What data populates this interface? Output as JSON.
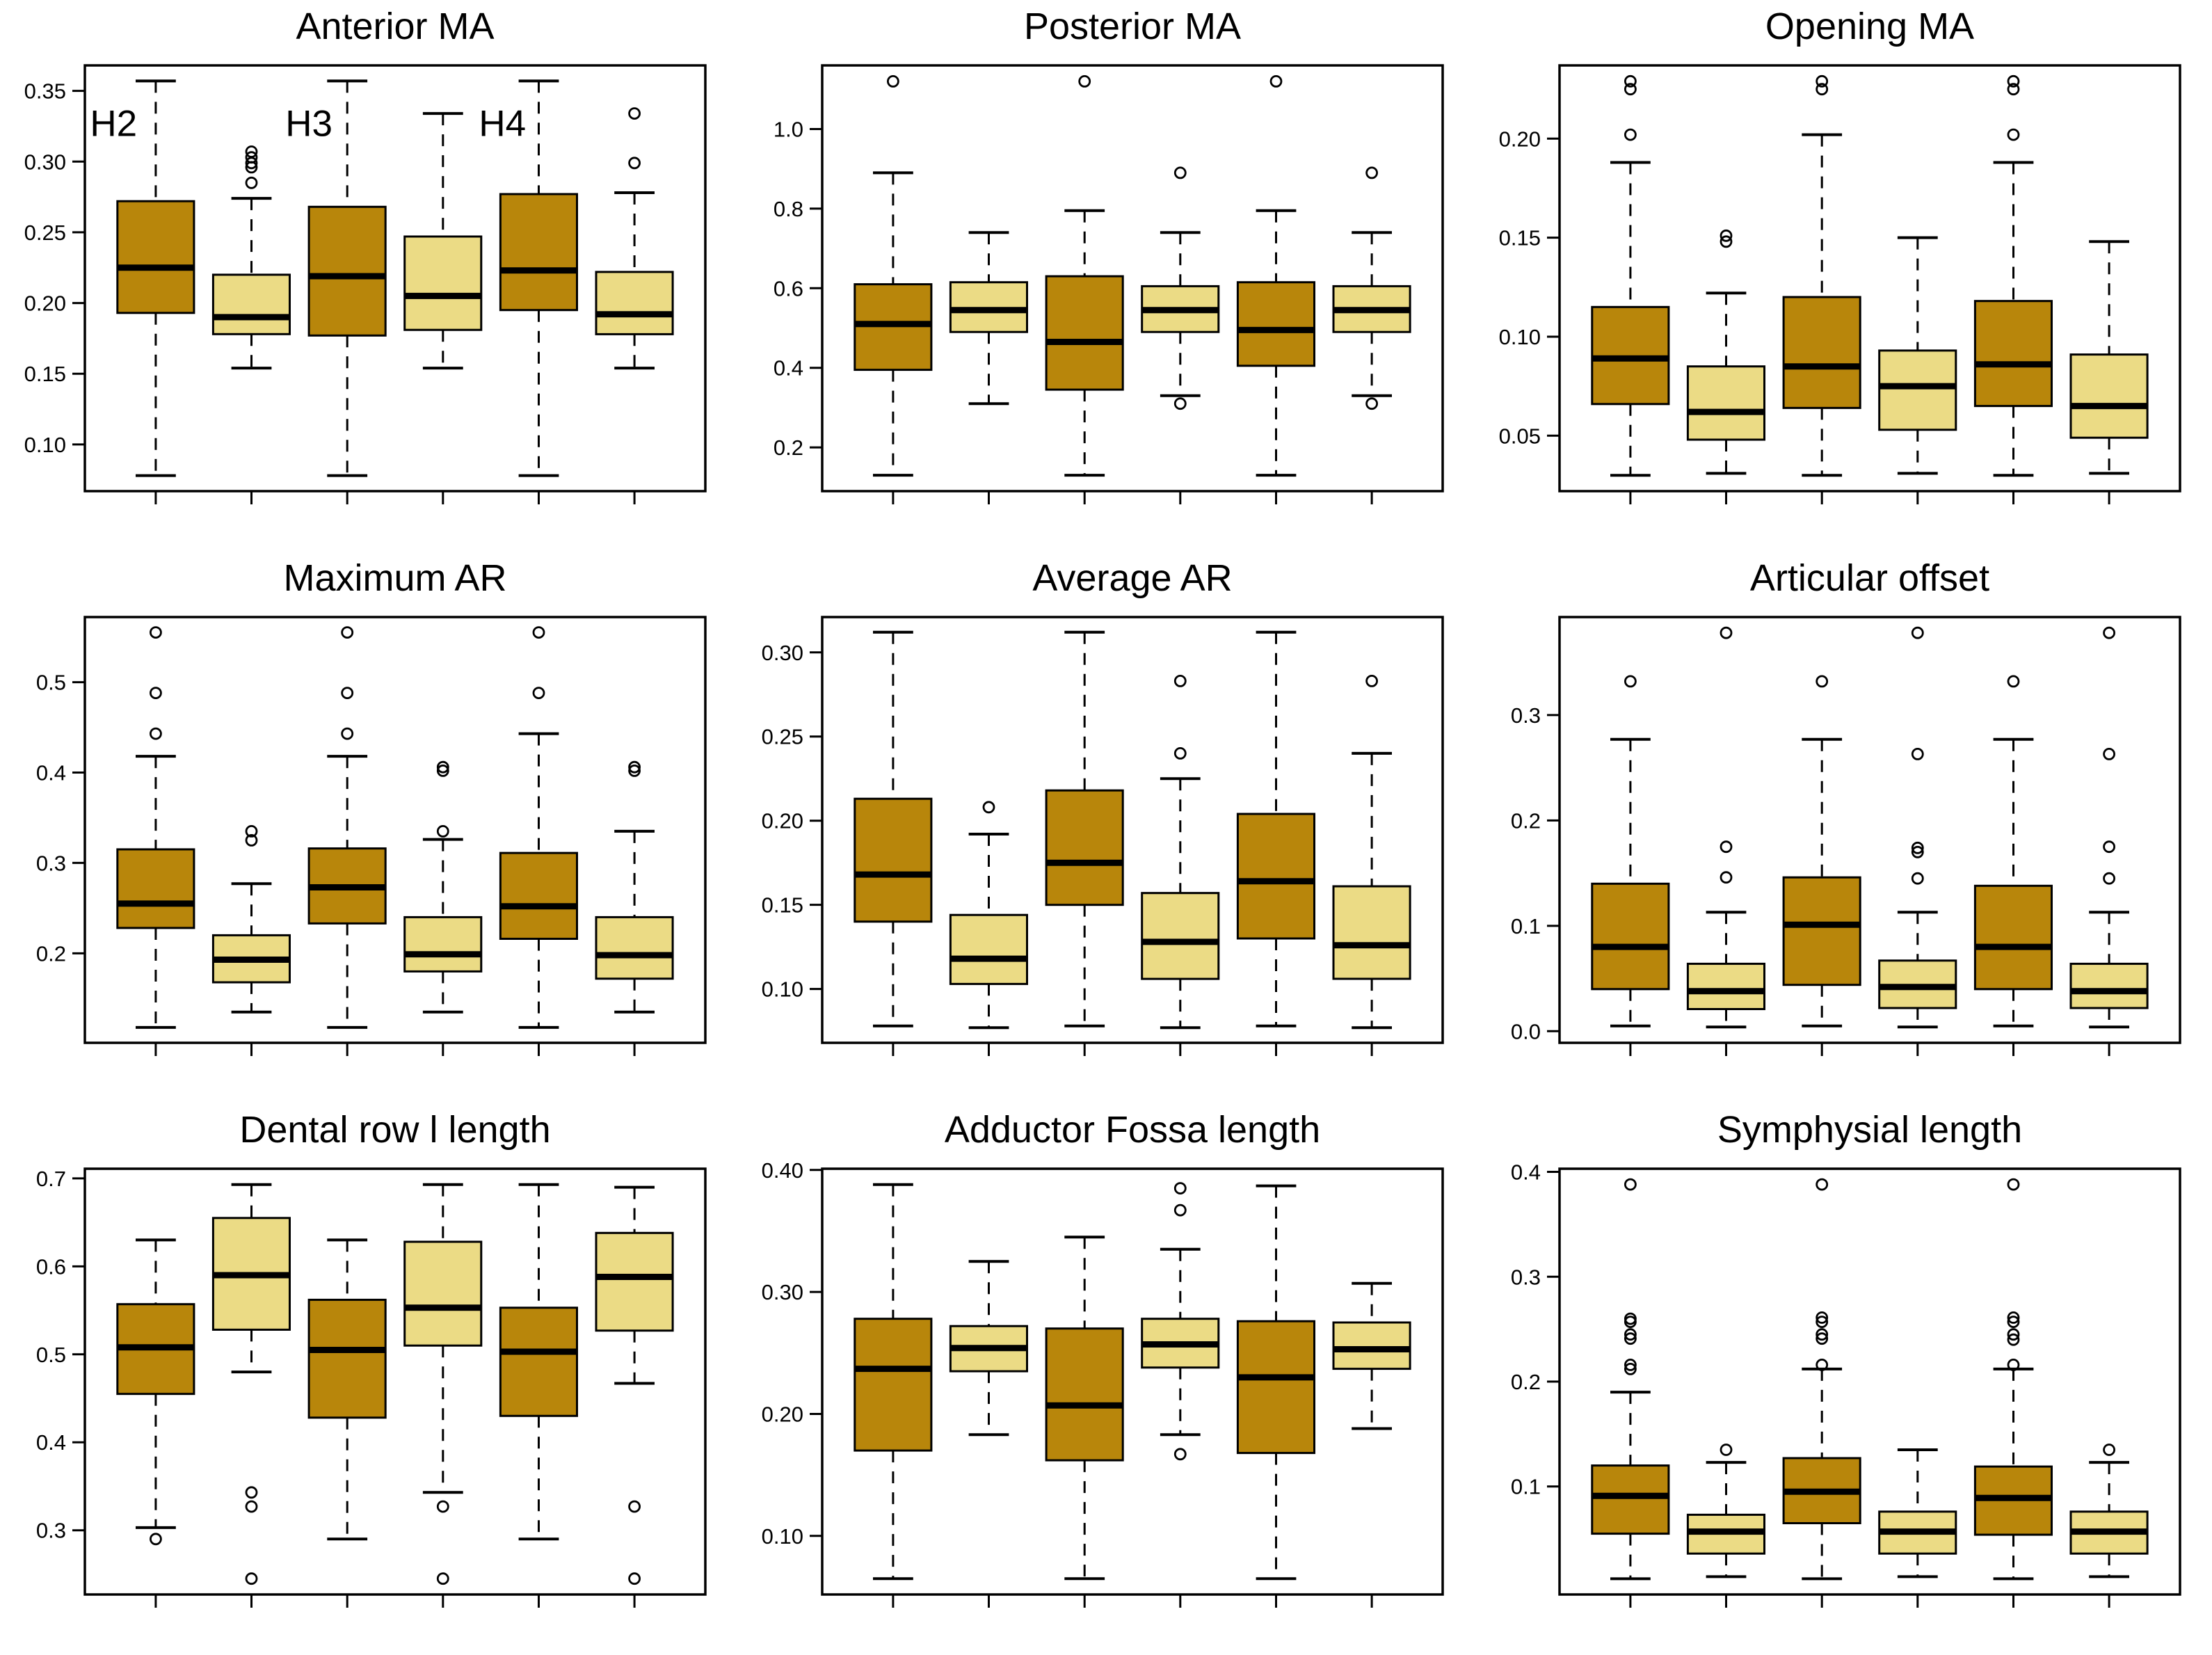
{
  "figure_title": "",
  "chart_data": {
    "type": "boxplot",
    "layout": {
      "rows": 3,
      "cols": 3,
      "grid": true,
      "legend_position": "none"
    },
    "colors": {
      "dark": "#B8860B",
      "light": "#EBDB85",
      "stroke": "#000000",
      "background": "#ffffff"
    },
    "group_labels": [
      "H2",
      "H3",
      "H4"
    ],
    "panels": [
      {
        "title": "Anterior MA",
        "ylim": [
          0.067,
          0.368
        ],
        "yticks": {
          "values": [
            0.1,
            0.15,
            0.2,
            0.25,
            0.3,
            0.35
          ],
          "labels": [
            "0.10",
            "0.15",
            "0.20",
            "0.25",
            "0.30",
            "0.35"
          ]
        },
        "annotations": [
          {
            "text": "H2",
            "x": 0.56,
            "y": 0.318
          },
          {
            "text": "H3",
            "x": 2.6,
            "y": 0.318
          },
          {
            "text": "H4",
            "x": 4.62,
            "y": 0.318
          }
        ],
        "boxes": [
          {
            "color": "dark",
            "whisker_low": 0.078,
            "q1": 0.193,
            "median": 0.225,
            "q3": 0.272,
            "whisker_high": 0.357,
            "outliers": []
          },
          {
            "color": "light",
            "whisker_low": 0.154,
            "q1": 0.178,
            "median": 0.19,
            "q3": 0.22,
            "whisker_high": 0.274,
            "outliers": [
              0.285,
              0.296,
              0.299,
              0.303,
              0.307
            ]
          },
          {
            "color": "dark",
            "whisker_low": 0.078,
            "q1": 0.177,
            "median": 0.219,
            "q3": 0.268,
            "whisker_high": 0.357,
            "outliers": []
          },
          {
            "color": "light",
            "whisker_low": 0.154,
            "q1": 0.181,
            "median": 0.205,
            "q3": 0.247,
            "whisker_high": 0.334,
            "outliers": []
          },
          {
            "color": "dark",
            "whisker_low": 0.078,
            "q1": 0.195,
            "median": 0.223,
            "q3": 0.277,
            "whisker_high": 0.357,
            "outliers": []
          },
          {
            "color": "light",
            "whisker_low": 0.154,
            "q1": 0.178,
            "median": 0.192,
            "q3": 0.222,
            "whisker_high": 0.278,
            "outliers": [
              0.299,
              0.334
            ]
          }
        ]
      },
      {
        "title": "Posterior MA",
        "ylim": [
          0.09,
          1.16
        ],
        "yticks": {
          "values": [
            0.2,
            0.4,
            0.6,
            0.8,
            1.0
          ],
          "labels": [
            "0.2",
            "0.4",
            "0.6",
            "0.8",
            "1.0"
          ]
        },
        "annotations": [],
        "boxes": [
          {
            "color": "dark",
            "whisker_low": 0.13,
            "q1": 0.395,
            "median": 0.51,
            "q3": 0.61,
            "whisker_high": 0.89,
            "outliers": [
              1.12
            ]
          },
          {
            "color": "light",
            "whisker_low": 0.31,
            "q1": 0.49,
            "median": 0.545,
            "q3": 0.615,
            "whisker_high": 0.74,
            "outliers": []
          },
          {
            "color": "dark",
            "whisker_low": 0.13,
            "q1": 0.345,
            "median": 0.465,
            "q3": 0.63,
            "whisker_high": 0.795,
            "outliers": [
              1.12
            ]
          },
          {
            "color": "light",
            "whisker_low": 0.33,
            "q1": 0.49,
            "median": 0.545,
            "q3": 0.605,
            "whisker_high": 0.74,
            "outliers": [
              0.31,
              0.89
            ]
          },
          {
            "color": "dark",
            "whisker_low": 0.13,
            "q1": 0.405,
            "median": 0.495,
            "q3": 0.615,
            "whisker_high": 0.795,
            "outliers": [
              1.12
            ]
          },
          {
            "color": "light",
            "whisker_low": 0.33,
            "q1": 0.49,
            "median": 0.545,
            "q3": 0.605,
            "whisker_high": 0.74,
            "outliers": [
              0.31,
              0.89
            ]
          }
        ]
      },
      {
        "title": "Opening MA",
        "ylim": [
          0.022,
          0.237
        ],
        "yticks": {
          "values": [
            0.05,
            0.1,
            0.15,
            0.2
          ],
          "labels": [
            "0.05",
            "0.10",
            "0.15",
            "0.20"
          ]
        },
        "annotations": [],
        "boxes": [
          {
            "color": "dark",
            "whisker_low": 0.03,
            "q1": 0.066,
            "median": 0.089,
            "q3": 0.115,
            "whisker_high": 0.188,
            "outliers": [
              0.202,
              0.225,
              0.229
            ]
          },
          {
            "color": "light",
            "whisker_low": 0.031,
            "q1": 0.048,
            "median": 0.062,
            "q3": 0.085,
            "whisker_high": 0.122,
            "outliers": [
              0.148,
              0.151
            ]
          },
          {
            "color": "dark",
            "whisker_low": 0.03,
            "q1": 0.064,
            "median": 0.085,
            "q3": 0.12,
            "whisker_high": 0.202,
            "outliers": [
              0.225,
              0.229
            ]
          },
          {
            "color": "light",
            "whisker_low": 0.031,
            "q1": 0.053,
            "median": 0.075,
            "q3": 0.093,
            "whisker_high": 0.15,
            "outliers": []
          },
          {
            "color": "dark",
            "whisker_low": 0.03,
            "q1": 0.065,
            "median": 0.086,
            "q3": 0.118,
            "whisker_high": 0.188,
            "outliers": [
              0.202,
              0.225,
              0.229
            ]
          },
          {
            "color": "light",
            "whisker_low": 0.031,
            "q1": 0.049,
            "median": 0.065,
            "q3": 0.091,
            "whisker_high": 0.148,
            "outliers": []
          }
        ]
      },
      {
        "title": "Maximum AR",
        "ylim": [
          0.101,
          0.572
        ],
        "yticks": {
          "values": [
            0.2,
            0.3,
            0.4,
            0.5
          ],
          "labels": [
            "0.2",
            "0.3",
            "0.4",
            "0.5"
          ]
        },
        "annotations": [],
        "boxes": [
          {
            "color": "dark",
            "whisker_low": 0.118,
            "q1": 0.228,
            "median": 0.255,
            "q3": 0.315,
            "whisker_high": 0.418,
            "outliers": [
              0.443,
              0.488,
              0.555
            ]
          },
          {
            "color": "light",
            "whisker_low": 0.135,
            "q1": 0.168,
            "median": 0.193,
            "q3": 0.22,
            "whisker_high": 0.277,
            "outliers": [
              0.325,
              0.335
            ]
          },
          {
            "color": "dark",
            "whisker_low": 0.118,
            "q1": 0.233,
            "median": 0.273,
            "q3": 0.316,
            "whisker_high": 0.418,
            "outliers": [
              0.443,
              0.488,
              0.555
            ]
          },
          {
            "color": "light",
            "whisker_low": 0.135,
            "q1": 0.18,
            "median": 0.199,
            "q3": 0.24,
            "whisker_high": 0.326,
            "outliers": [
              0.335,
              0.402,
              0.406
            ]
          },
          {
            "color": "dark",
            "whisker_low": 0.118,
            "q1": 0.216,
            "median": 0.252,
            "q3": 0.311,
            "whisker_high": 0.443,
            "outliers": [
              0.488,
              0.555
            ]
          },
          {
            "color": "light",
            "whisker_low": 0.135,
            "q1": 0.172,
            "median": 0.198,
            "q3": 0.24,
            "whisker_high": 0.335,
            "outliers": [
              0.402,
              0.406
            ]
          }
        ]
      },
      {
        "title": "Average AR",
        "ylim": [
          0.068,
          0.321
        ],
        "yticks": {
          "values": [
            0.1,
            0.15,
            0.2,
            0.25,
            0.3
          ],
          "labels": [
            "0.10",
            "0.15",
            "0.20",
            "0.25",
            "0.30"
          ]
        },
        "annotations": [],
        "boxes": [
          {
            "color": "dark",
            "whisker_low": 0.078,
            "q1": 0.14,
            "median": 0.168,
            "q3": 0.213,
            "whisker_high": 0.312,
            "outliers": []
          },
          {
            "color": "light",
            "whisker_low": 0.077,
            "q1": 0.103,
            "median": 0.118,
            "q3": 0.144,
            "whisker_high": 0.192,
            "outliers": [
              0.208
            ]
          },
          {
            "color": "dark",
            "whisker_low": 0.078,
            "q1": 0.15,
            "median": 0.175,
            "q3": 0.218,
            "whisker_high": 0.312,
            "outliers": []
          },
          {
            "color": "light",
            "whisker_low": 0.077,
            "q1": 0.106,
            "median": 0.128,
            "q3": 0.157,
            "whisker_high": 0.225,
            "outliers": [
              0.24,
              0.283
            ]
          },
          {
            "color": "dark",
            "whisker_low": 0.078,
            "q1": 0.13,
            "median": 0.164,
            "q3": 0.204,
            "whisker_high": 0.312,
            "outliers": []
          },
          {
            "color": "light",
            "whisker_low": 0.077,
            "q1": 0.106,
            "median": 0.126,
            "q3": 0.161,
            "whisker_high": 0.24,
            "outliers": [
              0.283
            ]
          }
        ]
      },
      {
        "title": "Articular offset",
        "ylim": [
          -0.011,
          0.393
        ],
        "yticks": {
          "values": [
            0.0,
            0.1,
            0.2,
            0.3
          ],
          "labels": [
            "0.0",
            "0.1",
            "0.2",
            "0.3"
          ]
        },
        "annotations": [],
        "boxes": [
          {
            "color": "dark",
            "whisker_low": 0.005,
            "q1": 0.04,
            "median": 0.08,
            "q3": 0.14,
            "whisker_high": 0.277,
            "outliers": [
              0.332
            ]
          },
          {
            "color": "light",
            "whisker_low": 0.004,
            "q1": 0.021,
            "median": 0.038,
            "q3": 0.064,
            "whisker_high": 0.113,
            "outliers": [
              0.146,
              0.175,
              0.378
            ]
          },
          {
            "color": "dark",
            "whisker_low": 0.005,
            "q1": 0.044,
            "median": 0.101,
            "q3": 0.146,
            "whisker_high": 0.277,
            "outliers": [
              0.332
            ]
          },
          {
            "color": "light",
            "whisker_low": 0.004,
            "q1": 0.022,
            "median": 0.042,
            "q3": 0.067,
            "whisker_high": 0.113,
            "outliers": [
              0.145,
              0.17,
              0.174,
              0.263,
              0.378
            ]
          },
          {
            "color": "dark",
            "whisker_low": 0.005,
            "q1": 0.04,
            "median": 0.08,
            "q3": 0.138,
            "whisker_high": 0.277,
            "outliers": [
              0.332
            ]
          },
          {
            "color": "light",
            "whisker_low": 0.004,
            "q1": 0.022,
            "median": 0.038,
            "q3": 0.064,
            "whisker_high": 0.113,
            "outliers": [
              0.145,
              0.175,
              0.263,
              0.378
            ]
          }
        ]
      },
      {
        "title": "Dental row l length",
        "ylim": [
          0.227,
          0.711
        ],
        "yticks": {
          "values": [
            0.3,
            0.4,
            0.5,
            0.6,
            0.7
          ],
          "labels": [
            "0.3",
            "0.4",
            "0.5",
            "0.6",
            "0.7"
          ]
        },
        "annotations": [],
        "boxes": [
          {
            "color": "dark",
            "whisker_low": 0.303,
            "q1": 0.455,
            "median": 0.508,
            "q3": 0.557,
            "whisker_high": 0.63,
            "outliers": [
              0.29
            ]
          },
          {
            "color": "light",
            "whisker_low": 0.48,
            "q1": 0.528,
            "median": 0.59,
            "q3": 0.655,
            "whisker_high": 0.693,
            "outliers": [
              0.343,
              0.327,
              0.245
            ]
          },
          {
            "color": "dark",
            "whisker_low": 0.29,
            "q1": 0.428,
            "median": 0.505,
            "q3": 0.562,
            "whisker_high": 0.63,
            "outliers": []
          },
          {
            "color": "light",
            "whisker_low": 0.343,
            "q1": 0.51,
            "median": 0.553,
            "q3": 0.628,
            "whisker_high": 0.693,
            "outliers": [
              0.327,
              0.245
            ]
          },
          {
            "color": "dark",
            "whisker_low": 0.29,
            "q1": 0.43,
            "median": 0.503,
            "q3": 0.553,
            "whisker_high": 0.693,
            "outliers": []
          },
          {
            "color": "light",
            "whisker_low": 0.467,
            "q1": 0.527,
            "median": 0.588,
            "q3": 0.638,
            "whisker_high": 0.69,
            "outliers": [
              0.327,
              0.245
            ]
          }
        ]
      },
      {
        "title": "Adductor Fossa length",
        "ylim": [
          0.052,
          0.401
        ],
        "yticks": {
          "values": [
            0.1,
            0.2,
            0.3,
            0.4
          ],
          "labels": [
            "0.10",
            "0.20",
            "0.30",
            "0.40"
          ]
        },
        "annotations": [],
        "boxes": [
          {
            "color": "dark",
            "whisker_low": 0.065,
            "q1": 0.17,
            "median": 0.237,
            "q3": 0.278,
            "whisker_high": 0.388,
            "outliers": []
          },
          {
            "color": "light",
            "whisker_low": 0.183,
            "q1": 0.235,
            "median": 0.254,
            "q3": 0.272,
            "whisker_high": 0.325,
            "outliers": []
          },
          {
            "color": "dark",
            "whisker_low": 0.065,
            "q1": 0.162,
            "median": 0.207,
            "q3": 0.27,
            "whisker_high": 0.345,
            "outliers": []
          },
          {
            "color": "light",
            "whisker_low": 0.183,
            "q1": 0.238,
            "median": 0.257,
            "q3": 0.278,
            "whisker_high": 0.335,
            "outliers": [
              0.167,
              0.367,
              0.385
            ]
          },
          {
            "color": "dark",
            "whisker_low": 0.065,
            "q1": 0.168,
            "median": 0.23,
            "q3": 0.276,
            "whisker_high": 0.387,
            "outliers": []
          },
          {
            "color": "light",
            "whisker_low": 0.188,
            "q1": 0.237,
            "median": 0.253,
            "q3": 0.275,
            "whisker_high": 0.307,
            "outliers": []
          }
        ]
      },
      {
        "title": "Symphysial length",
        "ylim": [
          -0.003,
          0.403
        ],
        "yticks": {
          "values": [
            0.1,
            0.2,
            0.3,
            0.4
          ],
          "labels": [
            "0.1",
            "0.2",
            "0.3",
            "0.4"
          ]
        },
        "annotations": [],
        "boxes": [
          {
            "color": "dark",
            "whisker_low": 0.012,
            "q1": 0.055,
            "median": 0.091,
            "q3": 0.12,
            "whisker_high": 0.19,
            "outliers": [
              0.212,
              0.216,
              0.241,
              0.245,
              0.257,
              0.26,
              0.388
            ]
          },
          {
            "color": "light",
            "whisker_low": 0.014,
            "q1": 0.036,
            "median": 0.057,
            "q3": 0.073,
            "whisker_high": 0.123,
            "outliers": [
              0.135
            ]
          },
          {
            "color": "dark",
            "whisker_low": 0.012,
            "q1": 0.065,
            "median": 0.095,
            "q3": 0.127,
            "whisker_high": 0.212,
            "outliers": [
              0.216,
              0.241,
              0.245,
              0.257,
              0.261,
              0.388
            ]
          },
          {
            "color": "light",
            "whisker_low": 0.014,
            "q1": 0.036,
            "median": 0.057,
            "q3": 0.076,
            "whisker_high": 0.135,
            "outliers": []
          },
          {
            "color": "dark",
            "whisker_low": 0.012,
            "q1": 0.054,
            "median": 0.089,
            "q3": 0.119,
            "whisker_high": 0.212,
            "outliers": [
              0.216,
              0.24,
              0.245,
              0.257,
              0.261,
              0.388
            ]
          },
          {
            "color": "light",
            "whisker_low": 0.014,
            "q1": 0.036,
            "median": 0.057,
            "q3": 0.076,
            "whisker_high": 0.123,
            "outliers": [
              0.135
            ]
          }
        ]
      }
    ]
  }
}
